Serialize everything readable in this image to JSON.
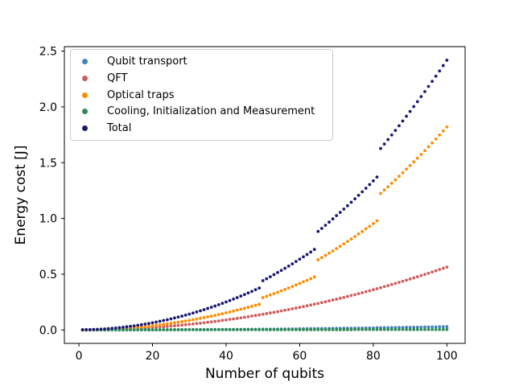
{
  "chart_data": {
    "type": "scatter",
    "xlabel": "Number of qubits",
    "ylabel": "Energy cost [J]",
    "xlim": [
      -3.95,
      104.95
    ],
    "ylim": [
      -0.12,
      2.54
    ],
    "xticks": [
      0,
      20,
      40,
      60,
      80,
      100
    ],
    "xtick_labels": [
      "0",
      "20",
      "40",
      "60",
      "80",
      "100"
    ],
    "yticks": [
      0.0,
      0.5,
      1.0,
      1.5,
      2.0,
      2.5
    ],
    "ytick_labels": [
      "0.0",
      "0.5",
      "1.0",
      "1.5",
      "2.0",
      "2.5"
    ],
    "grid": false,
    "legend_position": "upper left",
    "marker_radius": 1.9,
    "background_color": "#ffffff",
    "axis_color": "#000000",
    "x": [
      1,
      2,
      3,
      4,
      5,
      6,
      7,
      8,
      9,
      10,
      11,
      12,
      13,
      14,
      15,
      16,
      17,
      18,
      19,
      20,
      21,
      22,
      23,
      24,
      25,
      26,
      27,
      28,
      29,
      30,
      31,
      32,
      33,
      34,
      35,
      36,
      37,
      38,
      39,
      40,
      41,
      42,
      43,
      44,
      45,
      46,
      47,
      48,
      49,
      50,
      51,
      52,
      53,
      54,
      55,
      56,
      57,
      58,
      59,
      60,
      61,
      62,
      63,
      64,
      65,
      66,
      67,
      68,
      69,
      70,
      71,
      72,
      73,
      74,
      75,
      76,
      77,
      78,
      79,
      80,
      81,
      82,
      83,
      84,
      85,
      86,
      87,
      88,
      89,
      90,
      91,
      92,
      93,
      94,
      95,
      96,
      97,
      98,
      99,
      100
    ],
    "series": [
      {
        "name": "Qubit transport",
        "color": "#4682B4",
        "values": [
          0,
          0,
          0,
          0,
          0,
          0,
          0,
          0,
          0,
          0,
          0,
          0,
          0.001,
          0.001,
          0.001,
          0.001,
          0.001,
          0.001,
          0.001,
          0.001,
          0.001,
          0.001,
          0.002,
          0.002,
          0.002,
          0.002,
          0.002,
          0.002,
          0.003,
          0.003,
          0.003,
          0.003,
          0.003,
          0.003,
          0.004,
          0.004,
          0.004,
          0.004,
          0.005,
          0.005,
          0.005,
          0.005,
          0.006,
          0.006,
          0.006,
          0.006,
          0.007,
          0.007,
          0.007,
          0.008,
          0.008,
          0.008,
          0.008,
          0.009,
          0.009,
          0.009,
          0.01,
          0.01,
          0.01,
          0.011,
          0.011,
          0.012,
          0.012,
          0.012,
          0.013,
          0.013,
          0.013,
          0.014,
          0.014,
          0.015,
          0.015,
          0.016,
          0.016,
          0.016,
          0.017,
          0.017,
          0.018,
          0.018,
          0.019,
          0.019,
          0.02,
          0.02,
          0.021,
          0.021,
          0.022,
          0.022,
          0.023,
          0.023,
          0.024,
          0.024,
          0.025,
          0.025,
          0.026,
          0.027,
          0.027,
          0.028,
          0.028,
          0.029,
          0.029,
          0.03
        ]
      },
      {
        "name": "QFT",
        "color": "#CD5C5C",
        "values": [
          0,
          0,
          0.001,
          0.001,
          0.001,
          0.002,
          0.003,
          0.004,
          0.005,
          0.006,
          0.007,
          0.008,
          0.01,
          0.011,
          0.013,
          0.014,
          0.016,
          0.018,
          0.02,
          0.023,
          0.025,
          0.027,
          0.03,
          0.032,
          0.035,
          0.038,
          0.041,
          0.044,
          0.047,
          0.051,
          0.054,
          0.058,
          0.061,
          0.065,
          0.069,
          0.073,
          0.077,
          0.081,
          0.086,
          0.09,
          0.095,
          0.099,
          0.104,
          0.109,
          0.114,
          0.119,
          0.125,
          0.13,
          0.135,
          0.141,
          0.147,
          0.153,
          0.158,
          0.164,
          0.171,
          0.177,
          0.183,
          0.19,
          0.196,
          0.203,
          0.21,
          0.217,
          0.224,
          0.231,
          0.238,
          0.246,
          0.253,
          0.261,
          0.269,
          0.276,
          0.284,
          0.292,
          0.301,
          0.309,
          0.317,
          0.326,
          0.334,
          0.343,
          0.352,
          0.361,
          0.37,
          0.379,
          0.389,
          0.398,
          0.408,
          0.417,
          0.427,
          0.437,
          0.447,
          0.457,
          0.467,
          0.477,
          0.488,
          0.498,
          0.509,
          0.52,
          0.531,
          0.542,
          0.553,
          0.564
        ]
      },
      {
        "name": "Optical traps",
        "color": "#FF8C00",
        "values": [
          0,
          0,
          0.001,
          0.002,
          0.002,
          0.003,
          0.005,
          0.006,
          0.008,
          0.01,
          0.012,
          0.014,
          0.016,
          0.019,
          0.022,
          0.025,
          0.028,
          0.031,
          0.035,
          0.038,
          0.042,
          0.046,
          0.051,
          0.055,
          0.06,
          0.065,
          0.07,
          0.075,
          0.081,
          0.086,
          0.092,
          0.098,
          0.105,
          0.111,
          0.118,
          0.124,
          0.131,
          0.139,
          0.146,
          0.154,
          0.161,
          0.169,
          0.178,
          0.186,
          0.194,
          0.203,
          0.212,
          0.221,
          0.23,
          0.29,
          0.302,
          0.314,
          0.326,
          0.338,
          0.351,
          0.364,
          0.377,
          0.39,
          0.404,
          0.418,
          0.432,
          0.446,
          0.46,
          0.475,
          0.63,
          0.649,
          0.669,
          0.689,
          0.709,
          0.73,
          0.751,
          0.772,
          0.794,
          0.816,
          0.838,
          0.861,
          0.883,
          0.907,
          0.93,
          0.954,
          0.978,
          1.224,
          1.254,
          1.284,
          1.315,
          1.346,
          1.378,
          1.409,
          1.442,
          1.474,
          1.507,
          1.54,
          1.574,
          1.608,
          1.643,
          1.677,
          1.712,
          1.748,
          1.784,
          1.82
        ]
      },
      {
        "name": "Cooling, Initialization and Measurement",
        "color": "#2E8B57",
        "values": [
          0.002,
          0.002,
          0.002,
          0.002,
          0.002,
          0.002,
          0.002,
          0.002,
          0.002,
          0.002,
          0.002,
          0.002,
          0.002,
          0.002,
          0.002,
          0.002,
          0.002,
          0.002,
          0.002,
          0.002,
          0.002,
          0.002,
          0.002,
          0.002,
          0.003,
          0.003,
          0.003,
          0.003,
          0.003,
          0.003,
          0.003,
          0.003,
          0.003,
          0.003,
          0.003,
          0.003,
          0.003,
          0.003,
          0.003,
          0.003,
          0.003,
          0.003,
          0.003,
          0.003,
          0.003,
          0.003,
          0.003,
          0.003,
          0.003,
          0.003,
          0.003,
          0.003,
          0.003,
          0.003,
          0.003,
          0.003,
          0.003,
          0.003,
          0.003,
          0.003,
          0.003,
          0.003,
          0.003,
          0.003,
          0.003,
          0.003,
          0.003,
          0.003,
          0.003,
          0.003,
          0.003,
          0.003,
          0.003,
          0.003,
          0.004,
          0.004,
          0.004,
          0.004,
          0.004,
          0.004,
          0.004,
          0.004,
          0.004,
          0.004,
          0.004,
          0.004,
          0.004,
          0.004,
          0.004,
          0.004,
          0.004,
          0.004,
          0.004,
          0.004,
          0.004,
          0.004,
          0.004,
          0.004,
          0.004,
          0.004
        ]
      },
      {
        "name": "Total",
        "color": "#191970",
        "values": [
          0.002,
          0.003,
          0.003,
          0.005,
          0.006,
          0.008,
          0.01,
          0.012,
          0.015,
          0.018,
          0.021,
          0.025,
          0.029,
          0.033,
          0.037,
          0.042,
          0.047,
          0.053,
          0.058,
          0.065,
          0.071,
          0.078,
          0.085,
          0.092,
          0.1,
          0.108,
          0.116,
          0.124,
          0.133,
          0.142,
          0.152,
          0.162,
          0.172,
          0.182,
          0.193,
          0.204,
          0.215,
          0.227,
          0.239,
          0.251,
          0.264,
          0.277,
          0.29,
          0.304,
          0.318,
          0.332,
          0.346,
          0.361,
          0.376,
          0.442,
          0.459,
          0.477,
          0.496,
          0.515,
          0.534,
          0.553,
          0.573,
          0.593,
          0.614,
          0.635,
          0.656,
          0.677,
          0.699,
          0.722,
          0.884,
          0.911,
          0.939,
          0.967,
          0.996,
          1.025,
          1.054,
          1.084,
          1.114,
          1.145,
          1.176,
          1.207,
          1.239,
          1.271,
          1.304,
          1.337,
          1.371,
          1.627,
          1.667,
          1.707,
          1.748,
          1.789,
          1.831,
          1.873,
          1.916,
          1.959,
          2.003,
          2.047,
          2.092,
          2.137,
          2.183,
          2.229,
          2.275,
          2.322,
          2.37,
          2.418
        ]
      }
    ]
  }
}
